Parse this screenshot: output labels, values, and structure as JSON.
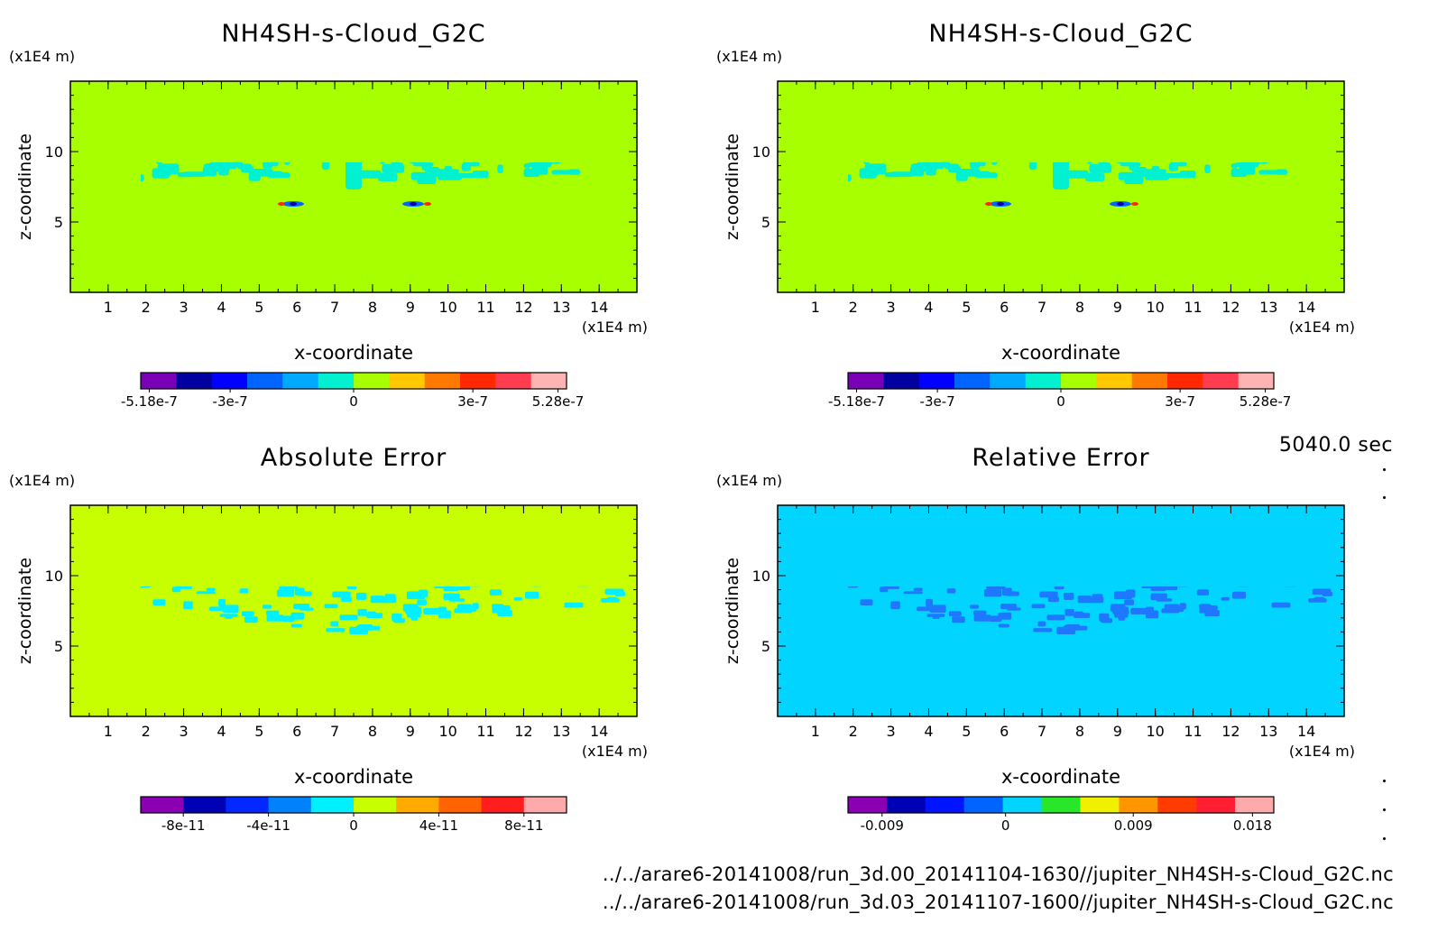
{
  "time_label": "5040.0 sec",
  "files": [
    "../../arare6-20141008/run_3d.00_20141104-1630//jupiter_NH4SH-s-Cloud_G2C.nc",
    "../../arare6-20141008/run_3d.03_20141107-1600//jupiter_NH4SH-s-Cloud_G2C.nc"
  ],
  "colors": {
    "top_background": "#a8ff00",
    "top_cloud": "#00f0d0",
    "abs_background": "#c8ff00",
    "abs_cloud": "#00f0ff",
    "rel_background": "#00d4ff",
    "rel_cloud": "#1e78ff"
  },
  "chart_data": [
    {
      "id": "top-left",
      "type": "heatmap",
      "title": "NH4SH-s-Cloud_G2C",
      "xlabel": "x-coordinate",
      "ylabel": "z-coordinate",
      "x_unit": "(x1E4 m)",
      "y_unit": "(x1E4 m)",
      "xlim": [
        0,
        15
      ],
      "ylim": [
        0,
        15
      ],
      "xticks": [
        1,
        2,
        3,
        4,
        5,
        6,
        7,
        8,
        9,
        10,
        11,
        12,
        13,
        14
      ],
      "yticks": [
        5,
        10
      ],
      "fill_levels": [
        -5.18e-07,
        5.28e-07
      ],
      "colorbar": {
        "colors": [
          "#7a00b8",
          "#0000a0",
          "#0000ff",
          "#0064ff",
          "#00aaff",
          "#00f0d0",
          "#a8ff00",
          "#ffc800",
          "#ff7800",
          "#ff2800",
          "#ff3c50",
          "#ffb4b4"
        ],
        "ticks": [
          {
            "label": "-5.18e-7",
            "at": 0.02
          },
          {
            "label": "-3e-7",
            "at": 0.21
          },
          {
            "label": "0",
            "at": 0.5
          },
          {
            "label": "3e-7",
            "at": 0.78
          },
          {
            "label": "5.28e-7",
            "at": 0.98
          }
        ]
      }
    },
    {
      "id": "top-right",
      "type": "heatmap",
      "title": "NH4SH-s-Cloud_G2C",
      "xlabel": "x-coordinate",
      "ylabel": "z-coordinate",
      "x_unit": "(x1E4 m)",
      "y_unit": "(x1E4 m)",
      "xlim": [
        0,
        15
      ],
      "ylim": [
        0,
        15
      ],
      "xticks": [
        1,
        2,
        3,
        4,
        5,
        6,
        7,
        8,
        9,
        10,
        11,
        12,
        13,
        14
      ],
      "yticks": [
        5,
        10
      ],
      "fill_levels": [
        -5.18e-07,
        5.28e-07
      ],
      "colorbar": {
        "colors": [
          "#7a00b8",
          "#0000a0",
          "#0000ff",
          "#0064ff",
          "#00aaff",
          "#00f0d0",
          "#a8ff00",
          "#ffc800",
          "#ff7800",
          "#ff2800",
          "#ff3c50",
          "#ffb4b4"
        ],
        "ticks": [
          {
            "label": "-5.18e-7",
            "at": 0.02
          },
          {
            "label": "-3e-7",
            "at": 0.21
          },
          {
            "label": "0",
            "at": 0.5
          },
          {
            "label": "3e-7",
            "at": 0.78
          },
          {
            "label": "5.28e-7",
            "at": 0.98
          }
        ]
      }
    },
    {
      "id": "bottom-left",
      "type": "heatmap",
      "title": "Absolute Error",
      "xlabel": "x-coordinate",
      "ylabel": "z-coordinate",
      "x_unit": "(x1E4 m)",
      "y_unit": "(x1E4 m)",
      "xlim": [
        0,
        15
      ],
      "ylim": [
        0,
        15
      ],
      "xticks": [
        1,
        2,
        3,
        4,
        5,
        6,
        7,
        8,
        9,
        10,
        11,
        12,
        13,
        14
      ],
      "yticks": [
        5,
        10
      ],
      "fill_levels": [
        -1e-10,
        1e-10
      ],
      "colorbar": {
        "colors": [
          "#8c00b4",
          "#0000b4",
          "#0028ff",
          "#0082ff",
          "#00f0ff",
          "#c8ff00",
          "#ffaa00",
          "#ff6400",
          "#ff1e1e",
          "#ffaaaa"
        ],
        "ticks": [
          {
            "label": "-8e-11",
            "at": 0.1
          },
          {
            "label": "-4e-11",
            "at": 0.3
          },
          {
            "label": "0",
            "at": 0.5
          },
          {
            "label": "4e-11",
            "at": 0.7
          },
          {
            "label": "8e-11",
            "at": 0.9
          }
        ]
      }
    },
    {
      "id": "bottom-right",
      "type": "heatmap",
      "title": "Relative Error",
      "xlabel": "x-coordinate",
      "ylabel": "z-coordinate",
      "x_unit": "(x1E4 m)",
      "y_unit": "(x1E4 m)",
      "xlim": [
        0,
        15
      ],
      "ylim": [
        0,
        15
      ],
      "xticks": [
        1,
        2,
        3,
        4,
        5,
        6,
        7,
        8,
        9,
        10,
        11,
        12,
        13,
        14
      ],
      "yticks": [
        5,
        10
      ],
      "fill_levels": [
        -0.009,
        0.018
      ],
      "colorbar": {
        "colors": [
          "#8c00b4",
          "#0000b4",
          "#0014ff",
          "#0064ff",
          "#00d4ff",
          "#28e628",
          "#f0f000",
          "#ff9600",
          "#ff3c00",
          "#ff1e32",
          "#ffaaaa"
        ],
        "ticks": [
          {
            "label": "-0.009",
            "at": 0.08
          },
          {
            "label": "0",
            "at": 0.37
          },
          {
            "label": "0.009",
            "at": 0.67
          },
          {
            "label": "0.018",
            "at": 0.95
          }
        ]
      }
    }
  ]
}
